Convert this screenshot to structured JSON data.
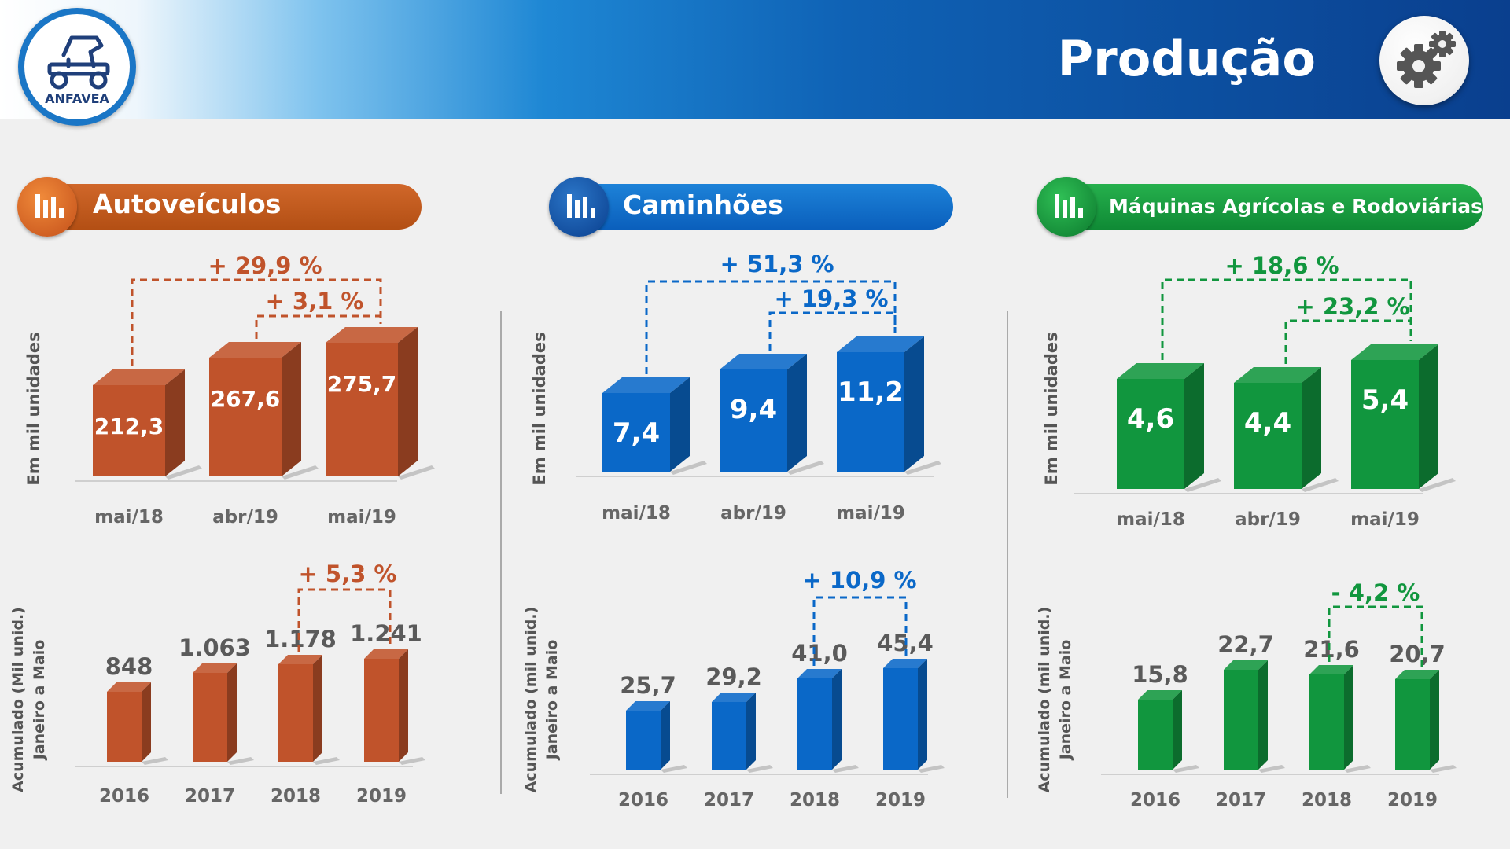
{
  "header": {
    "title": "Produção",
    "logo_text": "ANFAVEA",
    "logo_icon": "vehicle-icon",
    "settings_icon": "gear-icon"
  },
  "sections": [
    {
      "title": "Autoveículos",
      "icon": "bar-chart-icon",
      "color": "#c0532b"
    },
    {
      "title": "Caminhões",
      "icon": "bar-chart-icon",
      "color": "#0a68c8"
    },
    {
      "title": "Máquinas Agrícolas e Rodoviárias",
      "icon": "bar-chart-icon",
      "color": "#11963e"
    }
  ],
  "chart_data": [
    {
      "type": "bar",
      "section": "Autoveículos",
      "ylabel": "Em mil unidades",
      "categories": [
        "mai/18",
        "abr/19",
        "mai/19"
      ],
      "values": [
        212.3,
        267.6,
        275.7
      ],
      "value_labels": [
        "212,3",
        "267,6",
        "275,7"
      ],
      "comparisons": [
        {
          "from": "mai/18",
          "to": "mai/19",
          "label": "+ 29,9 %"
        },
        {
          "from": "abr/19",
          "to": "mai/19",
          "label": "+ 3,1 %"
        }
      ]
    },
    {
      "type": "bar",
      "section": "Autoveículos",
      "ylabel": "Acumulado (Mil unid.) Janeiro a Maio",
      "ylabel_lines": [
        "Acumulado (Mil unid.)",
        "Janeiro a Maio"
      ],
      "categories": [
        "2016",
        "2017",
        "2018",
        "2019"
      ],
      "values": [
        848,
        1063,
        1178,
        1241
      ],
      "value_labels": [
        "848",
        "1.063",
        "1.178",
        "1.241"
      ],
      "comparisons": [
        {
          "from": "2018",
          "to": "2019",
          "label": "+ 5,3 %"
        }
      ]
    },
    {
      "type": "bar",
      "section": "Caminhões",
      "ylabel": "Em mil unidades",
      "categories": [
        "mai/18",
        "abr/19",
        "mai/19"
      ],
      "values": [
        7.4,
        9.4,
        11.2
      ],
      "value_labels": [
        "7,4",
        "9,4",
        "11,2"
      ],
      "comparisons": [
        {
          "from": "mai/18",
          "to": "mai/19",
          "label": "+ 51,3 %"
        },
        {
          "from": "abr/19",
          "to": "mai/19",
          "label": "+ 19,3 %"
        }
      ]
    },
    {
      "type": "bar",
      "section": "Caminhões",
      "ylabel": "Acumulado (mil unid.) Janeiro a Maio",
      "ylabel_lines": [
        "Acumulado (mil unid.)",
        "Janeiro a Maio"
      ],
      "categories": [
        "2016",
        "2017",
        "2018",
        "2019"
      ],
      "values": [
        25.7,
        29.2,
        41.0,
        45.4
      ],
      "value_labels": [
        "25,7",
        "29,2",
        "41,0",
        "45,4"
      ],
      "comparisons": [
        {
          "from": "2018",
          "to": "2019",
          "label": "+ 10,9 %"
        }
      ]
    },
    {
      "type": "bar",
      "section": "Máquinas Agrícolas e Rodoviárias",
      "ylabel": "Em mil unidades",
      "categories": [
        "mai/18",
        "abr/19",
        "mai/19"
      ],
      "values": [
        4.6,
        4.4,
        5.4
      ],
      "value_labels": [
        "4,6",
        "4,4",
        "5,4"
      ],
      "comparisons": [
        {
          "from": "mai/18",
          "to": "mai/19",
          "label": "+ 18,6 %"
        },
        {
          "from": "abr/19",
          "to": "mai/19",
          "label": "+ 23,2 %"
        }
      ]
    },
    {
      "type": "bar",
      "section": "Máquinas Agrícolas e Rodoviárias",
      "ylabel": "Acumulado (mil unid.) Janeiro a Maio",
      "ylabel_lines": [
        "Acumulado (mil unid.)",
        "Janeiro a Maio"
      ],
      "categories": [
        "2016",
        "2017",
        "2018",
        "2019"
      ],
      "values": [
        15.8,
        22.7,
        21.6,
        20.7
      ],
      "value_labels": [
        "15,8",
        "22,7",
        "21,6",
        "20,7"
      ],
      "comparisons": [
        {
          "from": "2018",
          "to": "2019",
          "label": "- 4,2 %"
        }
      ]
    }
  ]
}
